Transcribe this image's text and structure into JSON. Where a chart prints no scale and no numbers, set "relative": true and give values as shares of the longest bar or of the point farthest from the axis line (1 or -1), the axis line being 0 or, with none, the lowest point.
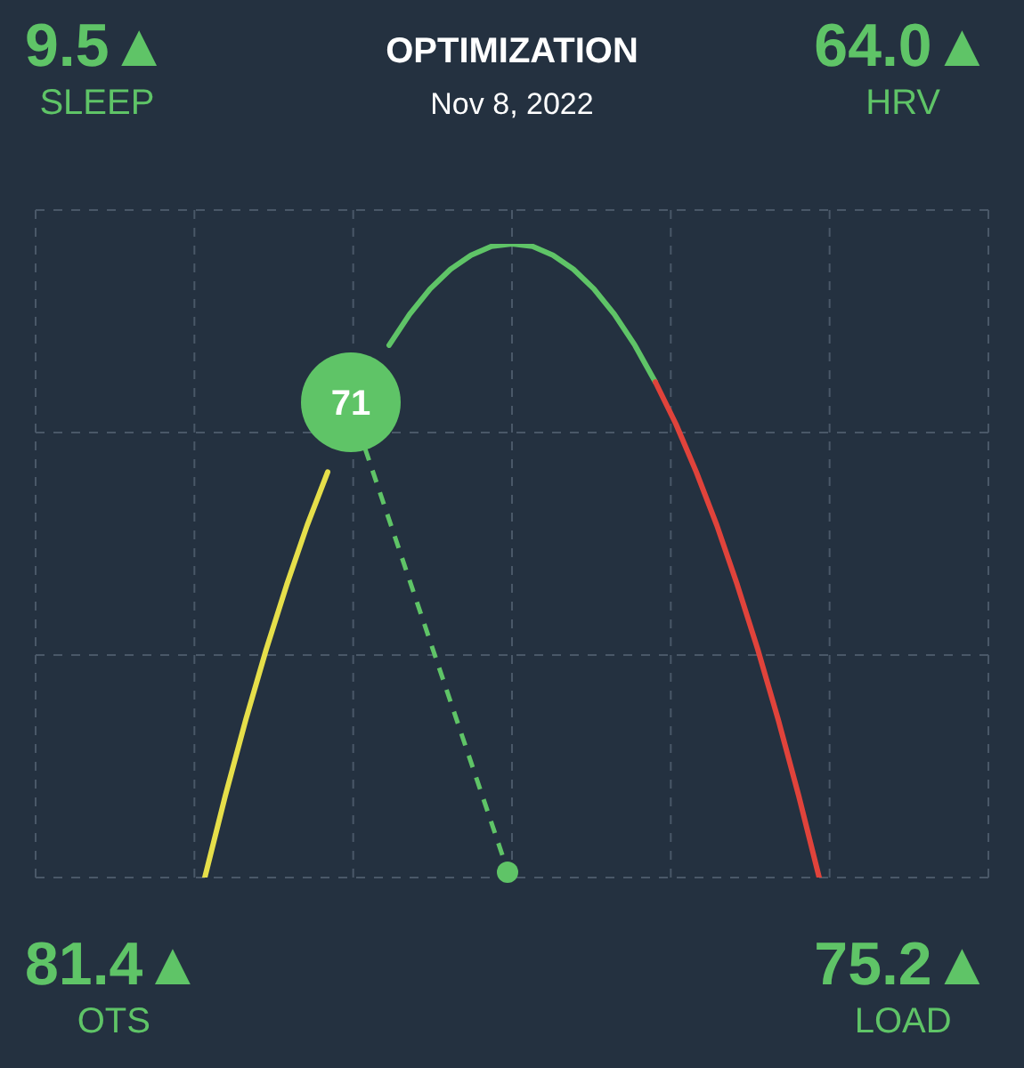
{
  "chart_data": {
    "type": "line",
    "title": "OPTIMIZATION",
    "subtitle": "Nov 8, 2022",
    "relative": true,
    "grid": true,
    "categories": [
      null,
      null,
      null,
      null,
      null,
      null,
      null,
      null,
      null,
      null,
      null,
      null,
      null,
      null,
      null,
      null,
      null,
      null,
      null,
      null,
      null,
      null,
      null,
      null,
      null,
      null,
      null,
      null,
      null,
      null,
      null
    ],
    "series": [
      {
        "color": "#e6df4a",
        "values": [
          0,
          0.129,
          0.249,
          0.36,
          0.462,
          0.556,
          0.64,
          null,
          null,
          null,
          null,
          null,
          null,
          null,
          null,
          null,
          null,
          null,
          null,
          null,
          null,
          null,
          null,
          null,
          null,
          null,
          null,
          null,
          null,
          null,
          null
        ]
      },
      {
        "color": "#5fc467",
        "values": [
          null,
          null,
          null,
          null,
          null,
          null,
          null,
          null,
          null,
          0.84,
          0.889,
          0.929,
          0.96,
          0.982,
          0.996,
          1,
          0.996,
          0.982,
          0.96,
          0.929,
          0.889,
          0.84,
          0.782,
          null,
          null,
          null,
          null,
          null,
          null,
          null,
          null
        ]
      },
      {
        "color": "#e0433b",
        "values": [
          null,
          null,
          null,
          null,
          null,
          null,
          null,
          null,
          null,
          null,
          null,
          null,
          null,
          null,
          null,
          null,
          null,
          null,
          null,
          null,
          null,
          null,
          0.782,
          0.716,
          0.64,
          0.556,
          0.462,
          0.36,
          0.249,
          0.129,
          0
        ]
      }
    ],
    "annotations": [
      "71",
      "9.5▲",
      "SLEEP",
      "64.0▲",
      "HRV",
      "81.4▲",
      "OTS",
      "75.2▲",
      "LOAD"
    ]
  }
}
